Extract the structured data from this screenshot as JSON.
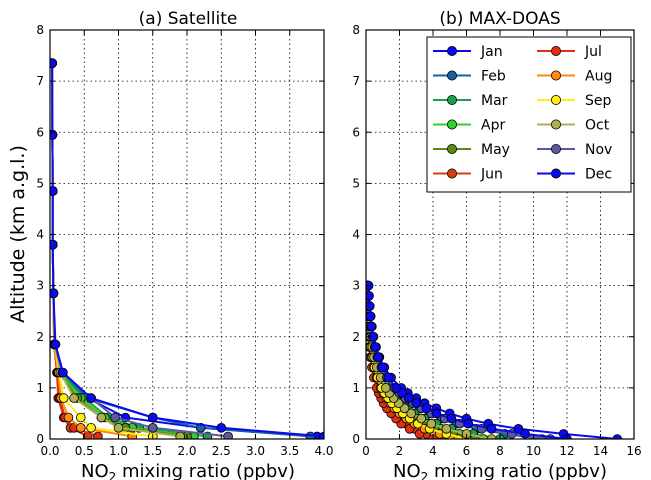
{
  "figure": {
    "ylabel": "Altitude (km a.g.l.)",
    "colors": [
      "#0a0af0",
      "#1a5fa0",
      "#18a050",
      "#30d030",
      "#5a8a10",
      "#d04010",
      "#e03010",
      "#ff8a10",
      "#ffee10",
      "#b0b050",
      "#5a5aa0",
      "#0a0af0"
    ]
  },
  "chart_data": [
    {
      "type": "line",
      "title": "(a) Satellite",
      "xlabel_prefix": "NO",
      "xlabel_sub": "2",
      "xlabel_suffix": " mixing ratio (ppbv)",
      "ylabel": "Altitude (km a.g.l.)",
      "xlim": [
        0,
        4.0
      ],
      "ylim": [
        0,
        8
      ],
      "xticks": [
        "0.0",
        "0.5",
        "1.0",
        "1.5",
        "2.0",
        "2.5",
        "3.0",
        "3.5",
        "4.0"
      ],
      "yticks": [
        "0",
        "1",
        "2",
        "3",
        "4",
        "5",
        "6",
        "7",
        "8"
      ],
      "grid": true,
      "y": [
        0.05,
        0.22,
        0.42,
        0.8,
        1.3,
        1.85,
        2.85,
        3.8,
        4.85,
        5.95,
        7.35
      ],
      "series": [
        {
          "x": [
            3.9,
            2.2,
            1.1,
            0.55,
            0.16,
            0.07,
            0.05,
            0.04,
            0.04,
            0.035,
            0.03
          ]
        },
        {
          "x": [
            3.8,
            2.2,
            1.5,
            0.55,
            0.17,
            0.07,
            0.05,
            0.04,
            0.04,
            0.035,
            0.03
          ]
        },
        {
          "x": [
            2.3,
            1.3,
            0.85,
            0.5,
            0.15,
            0.07,
            0.05,
            0.04,
            0.04,
            0.035,
            0.03
          ]
        },
        {
          "x": [
            2.1,
            1.2,
            0.8,
            0.45,
            0.14,
            0.07,
            0.05,
            0.04,
            0.04,
            0.035,
            0.03
          ]
        },
        {
          "x": [
            2.0,
            1.1,
            0.75,
            0.4,
            0.13,
            0.07,
            0.05,
            0.04,
            0.04,
            0.035,
            0.03
          ]
        },
        {
          "x": [
            0.55,
            0.3,
            0.2,
            0.12,
            0.1,
            0.06,
            0.05,
            0.04,
            0.04,
            0.035,
            0.03
          ]
        },
        {
          "x": [
            0.7,
            0.35,
            0.22,
            0.14,
            0.11,
            0.06,
            0.05,
            0.04,
            0.04,
            0.035,
            0.03
          ]
        },
        {
          "x": [
            1.2,
            0.45,
            0.27,
            0.16,
            0.12,
            0.06,
            0.05,
            0.04,
            0.04,
            0.035,
            0.03
          ]
        },
        {
          "x": [
            1.5,
            0.6,
            0.45,
            0.2,
            0.13,
            0.07,
            0.05,
            0.04,
            0.04,
            0.035,
            0.03
          ]
        },
        {
          "x": [
            1.9,
            1.0,
            0.75,
            0.35,
            0.15,
            0.07,
            0.05,
            0.04,
            0.04,
            0.035,
            0.03
          ]
        },
        {
          "x": [
            2.6,
            1.5,
            0.95,
            0.6,
            0.18,
            0.07,
            0.05,
            0.04,
            0.04,
            0.035,
            0.03
          ]
        },
        {
          "x": [
            4.0,
            2.5,
            1.5,
            0.6,
            0.19,
            0.08,
            0.05,
            0.04,
            0.04,
            0.035,
            0.03
          ]
        }
      ]
    },
    {
      "type": "line",
      "title": "(b) MAX-DOAS",
      "xlabel_prefix": "NO",
      "xlabel_sub": "2",
      "xlabel_suffix": " mixing ratio (ppbv)",
      "xlim": [
        0,
        16
      ],
      "ylim": [
        0,
        8
      ],
      "xticks": [
        "0",
        "2",
        "4",
        "6",
        "8",
        "10",
        "12",
        "14",
        "16"
      ],
      "yticks": [
        "0",
        "1",
        "2",
        "3",
        "4",
        "5",
        "6",
        "7",
        "8"
      ],
      "grid": true,
      "legend_position": "top-right",
      "legend": [
        "Jan",
        "Feb",
        "Mar",
        "Apr",
        "May",
        "Jun",
        "Jul",
        "Aug",
        "Sep",
        "Oct",
        "Nov",
        "Dec"
      ],
      "y": [
        0.0,
        0.1,
        0.2,
        0.3,
        0.4,
        0.5,
        0.6,
        0.7,
        0.8,
        0.9,
        1.0,
        1.2,
        1.4,
        1.6,
        1.8,
        2.0,
        2.2,
        2.4,
        2.6,
        2.8,
        3.0
      ],
      "series": [
        {
          "x": [
            15.0,
            11.8,
            9.1,
            7.3,
            6.0,
            5.0,
            4.2,
            3.5,
            3.0,
            2.5,
            2.1,
            1.5,
            1.1,
            0.8,
            0.6,
            0.45,
            0.35,
            0.28,
            0.22,
            0.18,
            0.15
          ]
        },
        {
          "x": [
            10.5,
            8.3,
            6.6,
            5.4,
            4.5,
            3.8,
            3.2,
            2.7,
            2.3,
            1.9,
            1.6,
            1.2,
            0.9,
            0.65,
            0.5,
            0.38,
            0.3,
            0.24,
            0.2,
            0.16,
            0.13
          ]
        },
        {
          "x": [
            8.0,
            6.4,
            5.1,
            4.2,
            3.5,
            2.9,
            2.5,
            2.1,
            1.8,
            1.5,
            1.3,
            0.95,
            0.7,
            0.52,
            0.4,
            0.31,
            0.25,
            0.2,
            0.16,
            0.13,
            0.11
          ]
        },
        {
          "x": [
            7.0,
            5.6,
            4.5,
            3.7,
            3.1,
            2.6,
            2.2,
            1.85,
            1.55,
            1.3,
            1.1,
            0.82,
            0.6,
            0.45,
            0.34,
            0.27,
            0.21,
            0.17,
            0.14,
            0.12,
            0.1
          ]
        },
        {
          "x": [
            6.5,
            5.2,
            4.1,
            3.4,
            2.8,
            2.4,
            2.0,
            1.7,
            1.45,
            1.2,
            1.0,
            0.75,
            0.55,
            0.41,
            0.31,
            0.24,
            0.19,
            0.16,
            0.13,
            0.11,
            0.09
          ]
        },
        {
          "x": [
            4.5,
            3.6,
            2.9,
            2.4,
            2.0,
            1.7,
            1.4,
            1.2,
            1.0,
            0.85,
            0.72,
            0.53,
            0.4,
            0.3,
            0.23,
            0.18,
            0.14,
            0.12,
            0.1,
            0.08,
            0.07
          ]
        },
        {
          "x": [
            4.0,
            3.2,
            2.6,
            2.1,
            1.8,
            1.5,
            1.25,
            1.05,
            0.9,
            0.76,
            0.64,
            0.47,
            0.35,
            0.26,
            0.2,
            0.16,
            0.13,
            0.1,
            0.09,
            0.07,
            0.06
          ]
        },
        {
          "x": [
            5.5,
            4.4,
            3.5,
            2.9,
            2.4,
            2.0,
            1.7,
            1.45,
            1.22,
            1.03,
            0.87,
            0.64,
            0.47,
            0.35,
            0.27,
            0.21,
            0.17,
            0.14,
            0.11,
            0.09,
            0.08
          ]
        },
        {
          "x": [
            6.0,
            4.8,
            3.8,
            3.1,
            2.6,
            2.2,
            1.85,
            1.55,
            1.32,
            1.1,
            0.93,
            0.69,
            0.51,
            0.38,
            0.29,
            0.23,
            0.18,
            0.15,
            0.12,
            0.1,
            0.08
          ]
        },
        {
          "x": [
            7.5,
            6.0,
            4.8,
            3.9,
            3.3,
            2.7,
            2.3,
            1.95,
            1.65,
            1.4,
            1.18,
            0.87,
            0.64,
            0.48,
            0.37,
            0.29,
            0.23,
            0.18,
            0.15,
            0.12,
            0.1
          ]
        },
        {
          "x": [
            11.0,
            8.7,
            6.9,
            5.6,
            4.7,
            3.9,
            3.3,
            2.8,
            2.35,
            2.0,
            1.7,
            1.25,
            0.92,
            0.68,
            0.52,
            0.4,
            0.31,
            0.25,
            0.2,
            0.17,
            0.14
          ]
        },
        {
          "x": [
            12.0,
            9.5,
            7.5,
            6.1,
            5.1,
            4.2,
            3.6,
            3.0,
            2.55,
            2.15,
            1.8,
            1.33,
            0.98,
            0.72,
            0.55,
            0.42,
            0.33,
            0.27,
            0.22,
            0.18,
            0.15
          ]
        }
      ]
    }
  ]
}
